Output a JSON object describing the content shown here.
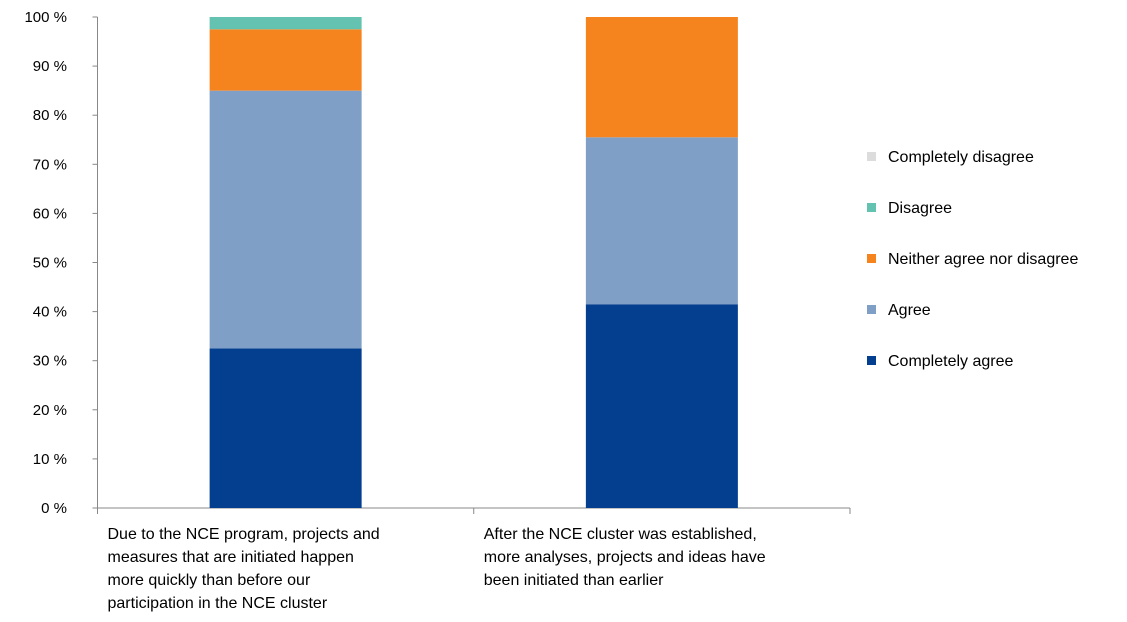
{
  "chart_data": {
    "type": "bar",
    "stacked": true,
    "categories": [
      "Due to the NCE program, projects and measures that are initiated happen more quickly  than before our participation in the NCE cluster",
      "After the NCE cluster was established, more analyses, projects and ideas have been initiated than earlier"
    ],
    "category_lines": [
      [
        "Due to the NCE program, projects and",
        "measures that are initiated happen",
        "more quickly  than before our",
        "participation in the NCE cluster"
      ],
      [
        "After the NCE cluster was established,",
        "more analyses, projects and ideas have",
        "been initiated than earlier"
      ]
    ],
    "series": [
      {
        "name": "Completely agree",
        "color": "#043f8f",
        "values": [
          32.5,
          41.5
        ]
      },
      {
        "name": "Agree",
        "color": "#809fc6",
        "values": [
          52.5,
          34.0
        ]
      },
      {
        "name": "Neither agree nor disagree",
        "color": "#f5841f",
        "values": [
          12.5,
          24.5
        ]
      },
      {
        "name": "Disagree",
        "color": "#63c3b0",
        "values": [
          2.5,
          0
        ]
      },
      {
        "name": "Completely disagree",
        "color": "#dcdcdc",
        "values": [
          0,
          0
        ]
      }
    ],
    "legend_order": [
      "Completely disagree",
      "Disagree",
      "Neither agree nor disagree",
      "Agree",
      "Completely agree"
    ],
    "legend_labels": {
      "Completely disagree": "Completely disagree",
      "Disagree": "Disagree",
      "Neither agree nor disagree": "Neither agree nor disagree",
      "Agree": "Agree",
      "Completely agree": "Completely agree"
    },
    "y_ticks": [
      "0 %",
      "10 %",
      "20 %",
      "30 %",
      "40 %",
      "50 %",
      "60 %",
      "70 %",
      "80 %",
      "90 %",
      "100 %"
    ],
    "ylim": [
      0,
      100
    ],
    "legend_position": "right",
    "grid": false,
    "title": "",
    "xlabel": "",
    "ylabel": ""
  }
}
